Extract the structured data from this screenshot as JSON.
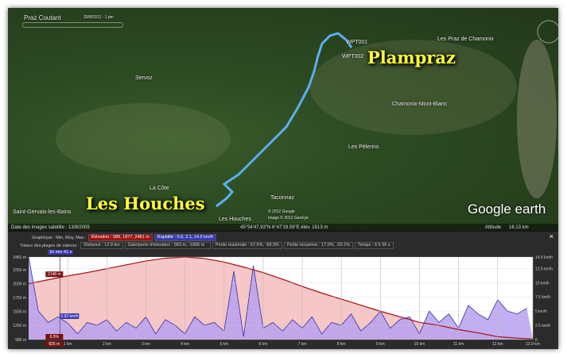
{
  "map": {
    "tour_name": "Praz Coutant",
    "tour_date": "29/8/2012 - 1 pm",
    "big_labels": [
      "Plampraz",
      "Les Houches"
    ],
    "place_labels": [
      "Servoz",
      "Les Praz de Chamonix",
      "Chamonix-Mont-Blanc",
      "Les Pèlerins",
      "La Côte",
      "Saint-Gervais-les-Bains",
      "Les Houches",
      "Taconnaz"
    ],
    "waypoints": [
      "WPT001",
      "WPT002"
    ],
    "copyright": [
      "© 2012 Google",
      "Image © 2012 GeoEye"
    ],
    "logo": "Google earth",
    "imagery_date": "Date des images satellite : 13/8/2009",
    "coords": "45°54'47.93\"N  6°47'19.59\"E  élév. 1513 m",
    "altitude_label": "Altitude",
    "altitude_value": "16.13 km"
  },
  "panel": {
    "graph_label": "Graphique : Min, Moy, Max :",
    "elevation_stat": "Élévation : 989, 1877, 2481 m",
    "speed_stat": "Rapidité : 0.0, 2.1, 14.5 km/h",
    "totals_label": "Totaux des plages de valeurs :",
    "distance": "Distance : 12.9 km",
    "gain": "Gain/perte d'élévation : 983 m, -1896 m",
    "max_slope": "Pente maximale : 67.6%, -69.3%",
    "avg_slope": "Pente moyenne : 17.0%, -20.1%",
    "time": "Temps : 6 h 39 s",
    "range_label": "1h min 41 s",
    "close": "×",
    "colors": {
      "elevation": "#a01010",
      "speed": "#3030a0",
      "elev_fill": "#f5b8b8",
      "speed_fill": "#b8a0f0"
    }
  },
  "chart_data": {
    "type": "area",
    "xlabel": "",
    "x_ticks": [
      "1 km",
      "2 km",
      "3 km",
      "4 km",
      "5 km",
      "6 km",
      "7 km",
      "8 km",
      "9 km",
      "10 km",
      "11 km",
      "12 km",
      "12.9 km"
    ],
    "xlim": [
      0,
      12.9
    ],
    "y_left_ticks": [
      "2481 m",
      "2250 m",
      "2000 m",
      "1750 m",
      "1500 m",
      "1250 m",
      "989 m"
    ],
    "ylim_left": [
      989,
      2481
    ],
    "y_right_ticks": [
      "14.5 km/h",
      "12.5 km/h",
      "10 km/h",
      "7.5 km/h",
      "5 km/h",
      "2.5 km/h",
      "0"
    ],
    "ylim_right": [
      0,
      14.5
    ],
    "cursor": {
      "km": 0.8,
      "elevation_label": "2148 m",
      "speed_label": "2.92 km/h",
      "slope_label": "6.5%",
      "distance_label": "825 m"
    },
    "series": [
      {
        "name": "Élévation",
        "x": [
          0,
          0.5,
          1,
          1.5,
          2,
          2.5,
          3,
          3.5,
          4,
          4.5,
          5,
          5.5,
          6,
          6.5,
          7,
          7.5,
          8,
          8.5,
          9,
          9.5,
          10,
          10.5,
          11,
          11.5,
          12,
          12.5,
          12.9
        ],
        "values": [
          2000,
          2070,
          2140,
          2200,
          2270,
          2340,
          2410,
          2460,
          2481,
          2455,
          2390,
          2300,
          2200,
          2080,
          1950,
          1830,
          1720,
          1610,
          1500,
          1400,
          1300,
          1245,
          1170,
          1110,
          1040,
          1015,
          998
        ]
      },
      {
        "name": "Rapidité",
        "x_step": 0.25,
        "values": [
          14.5,
          5,
          3,
          4,
          2.9,
          1,
          3,
          2.5,
          3.5,
          1.5,
          3,
          2,
          4,
          1,
          3.5,
          2.5,
          1,
          4,
          2.5,
          3,
          1.5,
          12,
          0.5,
          13,
          2,
          3,
          1.5,
          3.5,
          2,
          4,
          1,
          3,
          2.5,
          4.5,
          1.5,
          3,
          5,
          2,
          3.5,
          4,
          1,
          5,
          3,
          4.5,
          2,
          6,
          4.5,
          3.5,
          7,
          5,
          4.5,
          5.5
        ]
      }
    ]
  }
}
